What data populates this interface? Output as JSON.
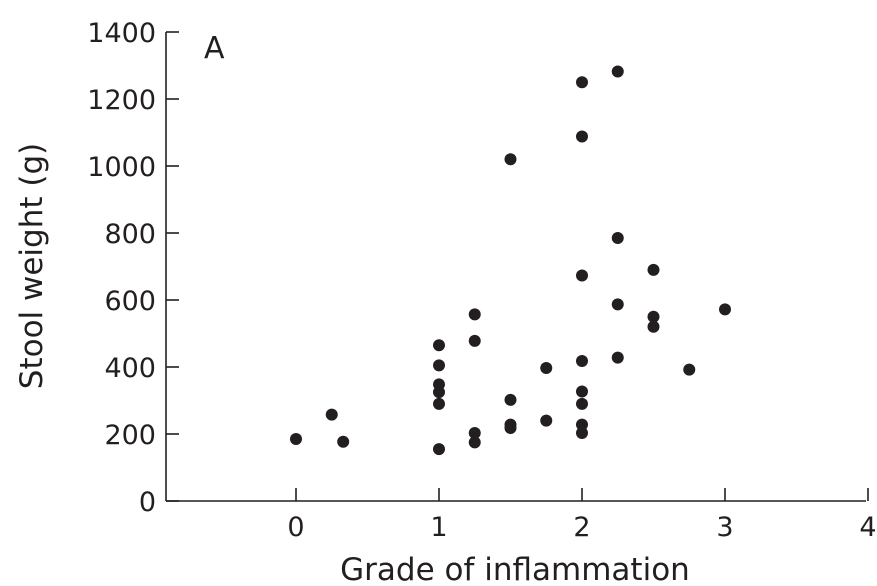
{
  "chart_data": {
    "type": "scatter",
    "title": "",
    "panel_label": "A",
    "xlabel": "Grade of inflammation",
    "ylabel": "Stool weight (g)",
    "xlim": [
      -0.9,
      4
    ],
    "ylim": [
      0,
      1400
    ],
    "xticks": [
      0,
      1,
      2,
      3,
      4
    ],
    "xtick_labels": [
      "0",
      "1",
      "2",
      "3",
      "4"
    ],
    "yticks": [
      0,
      200,
      400,
      600,
      800,
      1000,
      1200,
      1400
    ],
    "ytick_labels": [
      "0",
      "200",
      "400",
      "600",
      "800",
      "1000",
      "1200",
      "1400"
    ],
    "grid": false,
    "series": [
      {
        "marker_color": "#231f20",
        "points": [
          {
            "x": 0,
            "y": 185
          },
          {
            "x": 0.25,
            "y": 258
          },
          {
            "x": 0.33,
            "y": 177
          },
          {
            "x": 1,
            "y": 155
          },
          {
            "x": 1,
            "y": 290
          },
          {
            "x": 1,
            "y": 325
          },
          {
            "x": 1,
            "y": 348
          },
          {
            "x": 1,
            "y": 405
          },
          {
            "x": 1,
            "y": 465
          },
          {
            "x": 1.25,
            "y": 175
          },
          {
            "x": 1.25,
            "y": 203
          },
          {
            "x": 1.25,
            "y": 478
          },
          {
            "x": 1.25,
            "y": 557
          },
          {
            "x": 1.5,
            "y": 218
          },
          {
            "x": 1.5,
            "y": 228
          },
          {
            "x": 1.5,
            "y": 302
          },
          {
            "x": 1.5,
            "y": 1020
          },
          {
            "x": 1.75,
            "y": 240
          },
          {
            "x": 1.75,
            "y": 397
          },
          {
            "x": 2,
            "y": 203
          },
          {
            "x": 2,
            "y": 228
          },
          {
            "x": 2,
            "y": 290
          },
          {
            "x": 2,
            "y": 327
          },
          {
            "x": 2,
            "y": 418
          },
          {
            "x": 2,
            "y": 673
          },
          {
            "x": 2,
            "y": 1088
          },
          {
            "x": 2,
            "y": 1250
          },
          {
            "x": 2.25,
            "y": 428
          },
          {
            "x": 2.25,
            "y": 587
          },
          {
            "x": 2.25,
            "y": 785
          },
          {
            "x": 2.25,
            "y": 1282
          },
          {
            "x": 2.5,
            "y": 520
          },
          {
            "x": 2.5,
            "y": 550
          },
          {
            "x": 2.5,
            "y": 690
          },
          {
            "x": 2.75,
            "y": 392
          },
          {
            "x": 3,
            "y": 572
          }
        ]
      }
    ]
  }
}
